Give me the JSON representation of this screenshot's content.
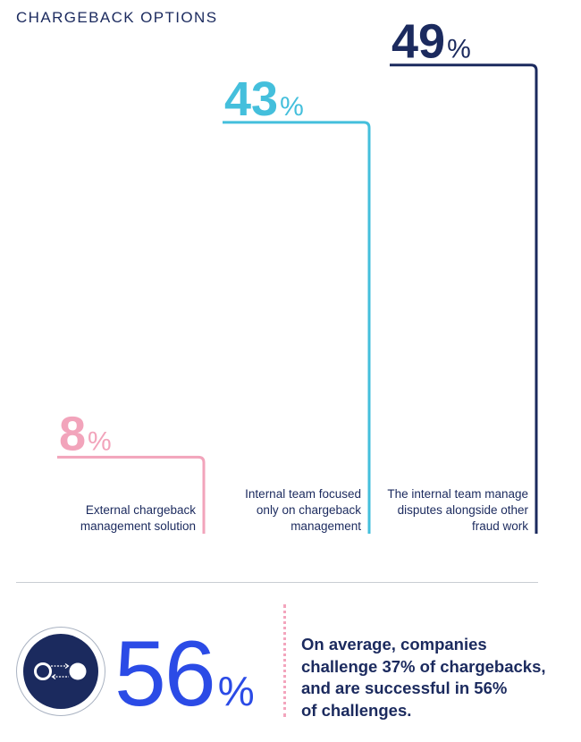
{
  "title": "CHARGEBACK OPTIONS",
  "chart_data": {
    "type": "bar",
    "title": "CHARGEBACK OPTIONS",
    "categories": [
      "External chargeback management solution",
      "Internal team focused only on chargeback management",
      "The internal team manage disputes alongside other fraud work"
    ],
    "values": [
      8,
      43,
      49
    ],
    "value_suffix": "%",
    "label_lines": [
      [
        "External chargeback",
        "management solution"
      ],
      [
        "Internal team focused",
        "only on chargeback",
        "management"
      ],
      [
        "The internal team manage",
        "disputes alongside other",
        "fraud work"
      ]
    ],
    "colors": [
      "#f2a4bb",
      "#44bfdc",
      "#1b2a5e"
    ],
    "ylim": [
      0,
      50
    ],
    "grid": false,
    "legend": "none"
  },
  "highlight": {
    "value": "56",
    "unit": "%",
    "icon": "toggle-arrows-icon",
    "color": "#2b4be6",
    "lines": [
      "On average, companies",
      "challenge 37% of chargebacks,",
      "and are successful in 56%",
      "of challenges."
    ]
  }
}
